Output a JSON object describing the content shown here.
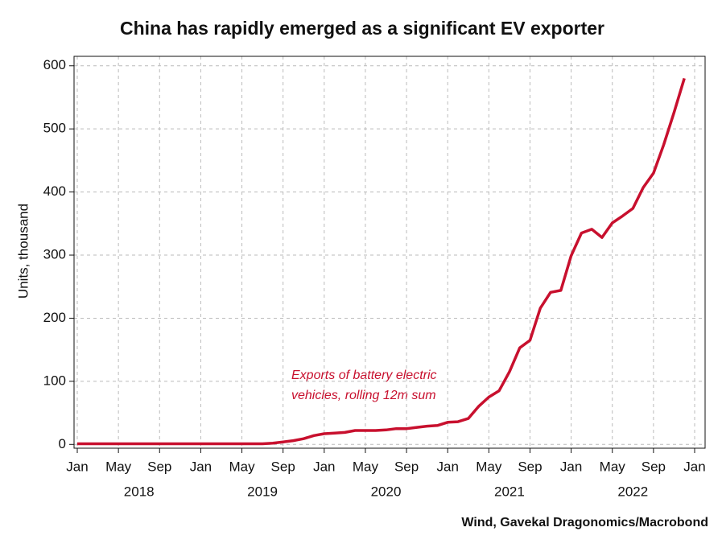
{
  "chart_data": {
    "type": "line",
    "title": "China has rapidly emerged as a significant EV exporter",
    "ylabel": "Units, thousand",
    "annotation": [
      "Exports of battery electric",
      "vehicles, rolling 12m sum"
    ],
    "source": "Wind, Gavekal Dragonomics/Macrobond",
    "x": [
      "2018-01",
      "2018-02",
      "2018-03",
      "2018-04",
      "2018-05",
      "2018-06",
      "2018-07",
      "2018-08",
      "2018-09",
      "2018-10",
      "2018-11",
      "2018-12",
      "2019-01",
      "2019-02",
      "2019-03",
      "2019-04",
      "2019-05",
      "2019-06",
      "2019-07",
      "2019-08",
      "2019-09",
      "2019-10",
      "2019-11",
      "2019-12",
      "2020-01",
      "2020-02",
      "2020-03",
      "2020-04",
      "2020-05",
      "2020-06",
      "2020-07",
      "2020-08",
      "2020-09",
      "2020-10",
      "2020-11",
      "2020-12",
      "2021-01",
      "2021-02",
      "2021-03",
      "2021-04",
      "2021-05",
      "2021-06",
      "2021-07",
      "2021-08",
      "2021-09",
      "2021-10",
      "2021-11",
      "2021-12",
      "2022-01",
      "2022-02",
      "2022-03",
      "2022-04",
      "2022-05",
      "2022-06",
      "2022-07",
      "2022-08",
      "2022-09",
      "2022-10",
      "2022-11",
      "2022-12"
    ],
    "series": [
      {
        "name": "Exports of battery electric vehicles, rolling 12m sum",
        "color": "#c8102e",
        "values": [
          1,
          1,
          1,
          1,
          1,
          1,
          1,
          1,
          1,
          1,
          1,
          1,
          1,
          1,
          1,
          1,
          1,
          1,
          1,
          2,
          4,
          6,
          9,
          14,
          17,
          18,
          19,
          22,
          22,
          22,
          23,
          25,
          25,
          27,
          29,
          30,
          35,
          36,
          41,
          60,
          75,
          85,
          115,
          153,
          165,
          216,
          241,
          244,
          299,
          335,
          341,
          328,
          351,
          362,
          374,
          407,
          430,
          475,
          526,
          580
        ]
      }
    ],
    "xlim": [
      "2018-01",
      "2023-01"
    ],
    "xticks": [
      {
        "value": "2018-01",
        "label": "Jan"
      },
      {
        "value": "2018-05",
        "label": "May"
      },
      {
        "value": "2018-09",
        "label": "Sep"
      },
      {
        "value": "2019-01",
        "label": "Jan"
      },
      {
        "value": "2019-05",
        "label": "May"
      },
      {
        "value": "2019-09",
        "label": "Sep"
      },
      {
        "value": "2020-01",
        "label": "Jan"
      },
      {
        "value": "2020-05",
        "label": "May"
      },
      {
        "value": "2020-09",
        "label": "Sep"
      },
      {
        "value": "2021-01",
        "label": "Jan"
      },
      {
        "value": "2021-05",
        "label": "May"
      },
      {
        "value": "2021-09",
        "label": "Sep"
      },
      {
        "value": "2022-01",
        "label": "Jan"
      },
      {
        "value": "2022-05",
        "label": "May"
      },
      {
        "value": "2022-09",
        "label": "Sep"
      },
      {
        "value": "2023-01",
        "label": "Jan"
      }
    ],
    "years": [
      "2018",
      "2019",
      "2020",
      "2021",
      "2022"
    ],
    "ylim": [
      -6,
      615
    ],
    "yticks": [
      0,
      100,
      200,
      300,
      400,
      500,
      600
    ],
    "grid": true
  }
}
